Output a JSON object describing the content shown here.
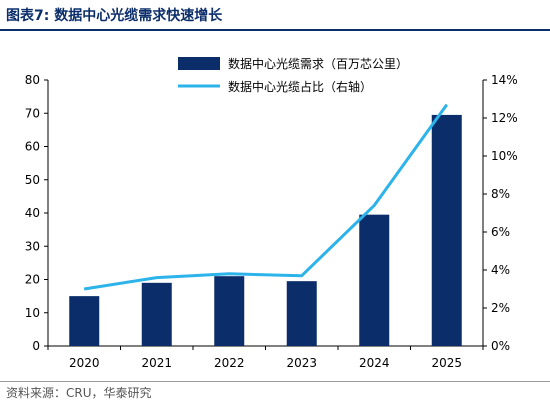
{
  "figure": {
    "title": "图表7:  数据中心光缆需求快速增长",
    "source": "资料来源：CRU，华泰研究"
  },
  "colors": {
    "bar": "#0b2e6b",
    "line": "#2bb3ea",
    "axis": "#000000",
    "title": "#0b2e6b"
  },
  "chart_data": {
    "type": "bar",
    "categories": [
      "2020",
      "2021",
      "2022",
      "2023",
      "2024",
      "2025"
    ],
    "series": [
      {
        "name": "数据中心光缆需求（百万芯公里）",
        "type": "bar",
        "axis": "left",
        "values": [
          15,
          19,
          21,
          19.5,
          39.5,
          69.5
        ]
      },
      {
        "name": "数据中心光缆占比（右轴）",
        "type": "line",
        "axis": "right",
        "values": [
          3.0,
          3.6,
          3.8,
          3.7,
          7.4,
          12.7
        ]
      }
    ],
    "left_axis": {
      "min": 0,
      "max": 80,
      "ticks": [
        0,
        10,
        20,
        30,
        40,
        50,
        60,
        70,
        80
      ]
    },
    "right_axis": {
      "min": 0,
      "max": 14,
      "ticks": [
        "0%",
        "2%",
        "4%",
        "6%",
        "8%",
        "10%",
        "12%",
        "14%"
      ]
    },
    "legend_position": "top-center",
    "grid": false
  }
}
